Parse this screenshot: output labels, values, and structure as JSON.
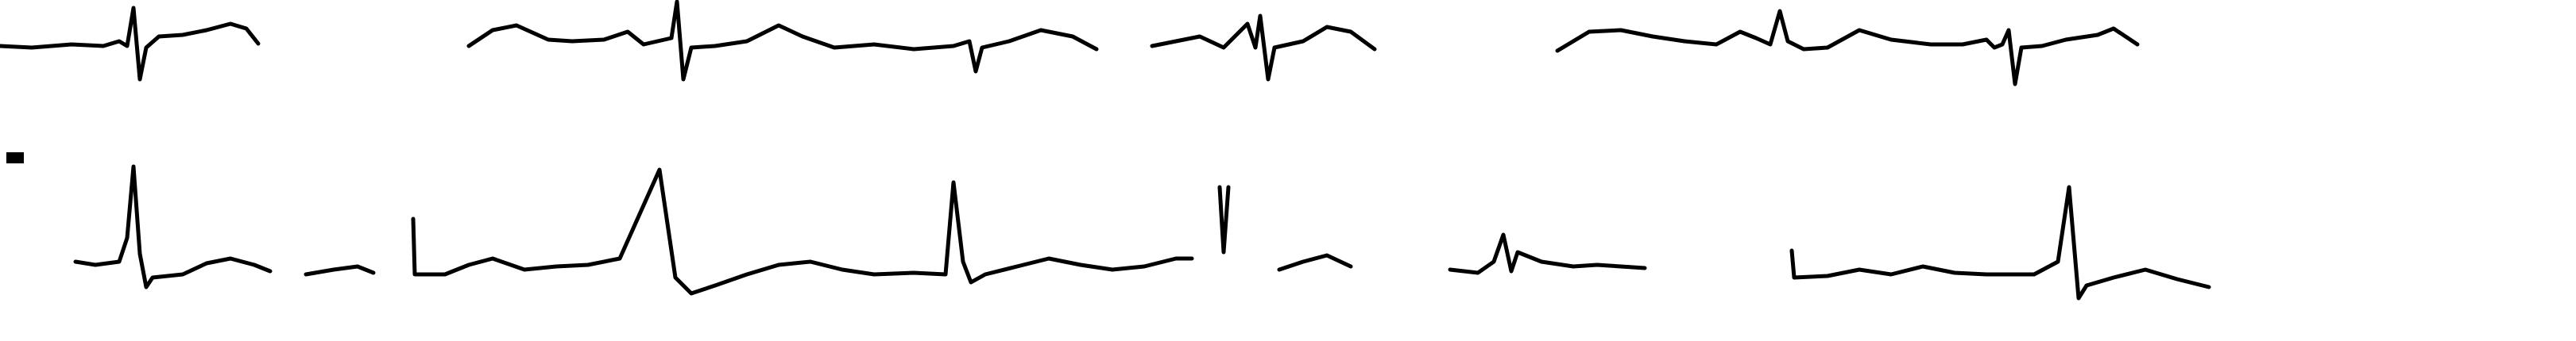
{
  "trace_color": "#000000",
  "background_color": "#ffffff",
  "strips": [
    {
      "lead": ""
    },
    {
      "lead": ""
    }
  ]
}
